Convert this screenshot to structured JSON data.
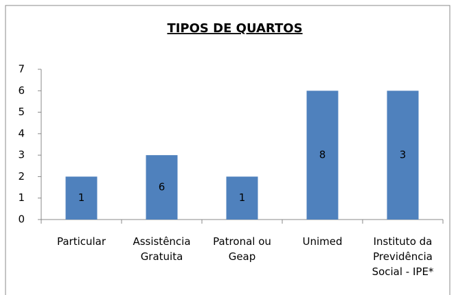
{
  "chart_data": {
    "type": "bar",
    "title": "TIPOS DE QUARTOS",
    "categories": [
      "Particular",
      "Assistência Gratuita",
      "Patronal ou Geap",
      "Unimed",
      "Instituto da Previdência Social - IPE*"
    ],
    "values": [
      2,
      3,
      2,
      6,
      6
    ],
    "annotations": [
      "1",
      "6",
      "1",
      "8",
      "3"
    ],
    "color": "#4f81bd",
    "ylim": [
      0,
      7
    ],
    "yticks": [
      0,
      1,
      2,
      3,
      4,
      5,
      6,
      7
    ],
    "grid": false
  }
}
